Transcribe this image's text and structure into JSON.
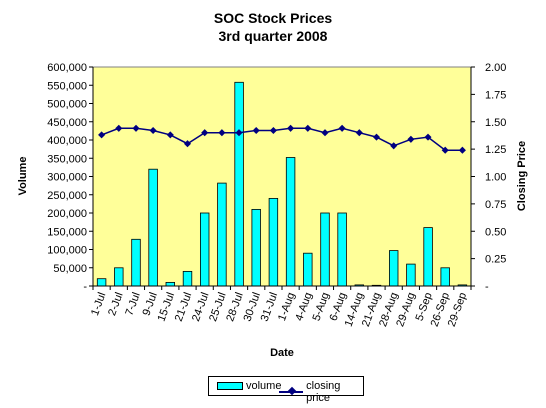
{
  "chart_data": {
    "type": "bar",
    "title": "SOC Stock Prices",
    "subtitle": "3rd quarter 2008",
    "xlabel": "Date",
    "ylabel": "Volume",
    "y2label": "Closing Price",
    "categories": [
      "1-Jul",
      "2-Jul",
      "7-Jul",
      "9-Jul",
      "15-Jul",
      "21-Jul",
      "24-Jul",
      "25-Jul",
      "28-Jul",
      "30-Jul",
      "31-Jul",
      "1-Aug",
      "4-Aug",
      "5-Aug",
      "6-Aug",
      "14-Aug",
      "21-Aug",
      "28-Aug",
      "29-Aug",
      "5-Sep",
      "26-Sep",
      "29-Sep"
    ],
    "series": [
      {
        "name": "volume",
        "type": "bar",
        "axis": "left",
        "color": "#00FFFF",
        "values": [
          20000,
          50000,
          128000,
          320000,
          10000,
          40000,
          200000,
          282000,
          558000,
          210000,
          240000,
          352000,
          90000,
          200000,
          200000,
          3000,
          2000,
          97000,
          60000,
          160000,
          50000,
          3000
        ]
      },
      {
        "name": "closing price",
        "type": "line",
        "axis": "right",
        "color": "#000080",
        "values": [
          1.38,
          1.44,
          1.44,
          1.42,
          1.38,
          1.3,
          1.4,
          1.4,
          1.4,
          1.42,
          1.42,
          1.44,
          1.44,
          1.4,
          1.44,
          1.4,
          1.36,
          1.28,
          1.34,
          1.36,
          1.24,
          1.24
        ]
      }
    ],
    "ylim": [
      0,
      600000
    ],
    "y2lim": [
      0,
      2.0
    ],
    "yticks": [
      "-",
      "50,000",
      "100,000",
      "150,000",
      "200,000",
      "250,000",
      "300,000",
      "350,000",
      "400,000",
      "450,000",
      "500,000",
      "550,000",
      "600,000"
    ],
    "y2ticks": [
      "-",
      "0.25",
      "0.50",
      "0.75",
      "1.00",
      "1.25",
      "1.50",
      "1.75",
      "2.00"
    ],
    "plot_background": "#FFFF99",
    "legend_position": "bottom",
    "grid": false
  }
}
